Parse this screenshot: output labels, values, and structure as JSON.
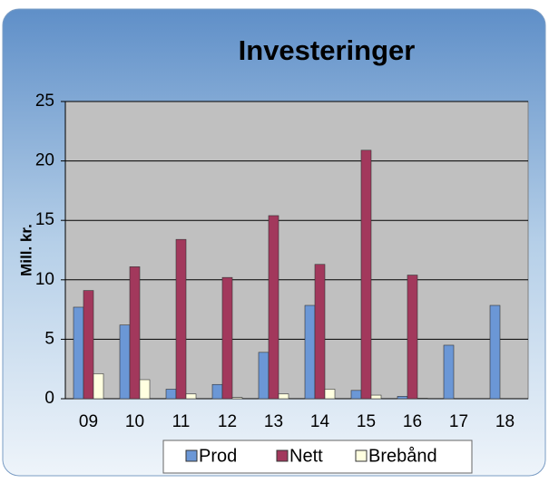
{
  "chart_data": {
    "type": "bar",
    "title": "Investeringer",
    "y_label": "Mill. kr.",
    "categories": [
      "09",
      "10",
      "11",
      "12",
      "13",
      "14",
      "15",
      "16",
      "17",
      "18"
    ],
    "series": [
      {
        "name": "Prod",
        "color": "#6b97d6",
        "values": [
          7.7,
          6.2,
          0.8,
          1.2,
          3.9,
          7.85,
          0.7,
          0.2,
          4.5,
          7.85
        ]
      },
      {
        "name": "Nett",
        "color": "#a2385c",
        "values": [
          9.1,
          11.1,
          13.4,
          10.2,
          15.4,
          11.3,
          20.9,
          10.4,
          0,
          0
        ]
      },
      {
        "name": "Brebånd",
        "color": "#ffffe0",
        "values": [
          2.1,
          1.6,
          0.4,
          0.1,
          0.4,
          0.8,
          0.3,
          0.05,
          0,
          0
        ]
      }
    ],
    "ylim": [
      0,
      25
    ],
    "yticks": [
      0,
      5,
      10,
      15,
      20,
      25
    ],
    "grid": true,
    "legend": "bottom"
  }
}
